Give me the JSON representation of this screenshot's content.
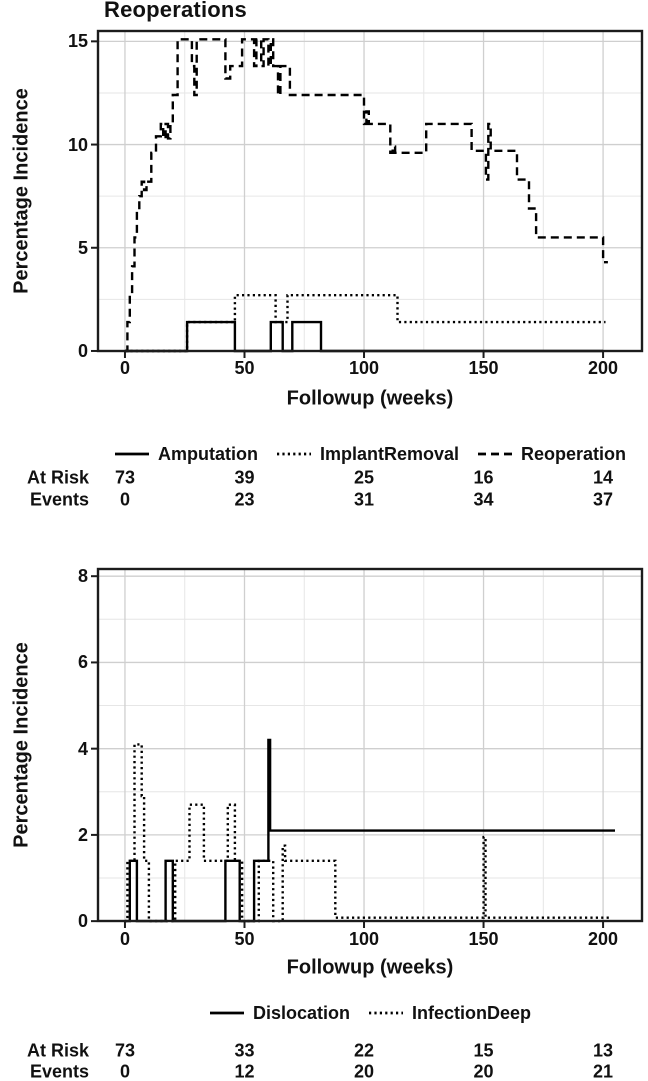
{
  "figure": {
    "background": "#ffffff",
    "line_color": "#000000",
    "border_color": "#1c1c1c",
    "grid_major_color": "#cfcfcf",
    "grid_minor_color": "#e6e6e6",
    "text_color": "#111111"
  },
  "chart_data": [
    {
      "type": "line",
      "variant": "step",
      "title": "Reoperations",
      "xlabel": "Followup (weeks)",
      "ylabel": "Percentage Incidence",
      "xlim": [
        -11.7,
        216.7
      ],
      "ylim": [
        -0.05,
        15.55
      ],
      "x_ticks": [
        0,
        50,
        100,
        150,
        200
      ],
      "x_minor": [
        25,
        75,
        125,
        175
      ],
      "y_ticks": [
        0,
        5,
        10,
        15
      ],
      "y_minor": [
        2.5,
        7.5,
        12.5
      ],
      "y_tick_suffix": "%",
      "grid": true,
      "legend_position": "bottom",
      "series": [
        {
          "name": "Amputation",
          "linestyle": "solid",
          "points": [
            [
              0,
              0
            ],
            [
              26,
              0
            ],
            [
              26,
              1.4
            ],
            [
              46,
              1.4
            ],
            [
              46,
              0
            ],
            [
              61,
              0
            ],
            [
              61,
              1.4
            ],
            [
              66,
              1.4
            ],
            [
              66,
              0
            ],
            [
              70,
              0
            ],
            [
              70,
              1.4
            ],
            [
              82,
              1.4
            ],
            [
              82,
              0
            ],
            [
              200,
              0
            ]
          ]
        },
        {
          "name": "ImplantRemoval",
          "linestyle": "dotted",
          "points": [
            [
              0,
              0
            ],
            [
              26,
              0
            ],
            [
              26,
              1.4
            ],
            [
              46,
              1.4
            ],
            [
              46,
              2.7
            ],
            [
              63,
              2.7
            ],
            [
              63,
              1.4
            ],
            [
              68,
              1.4
            ],
            [
              68,
              2.7
            ],
            [
              114,
              2.7
            ],
            [
              114,
              1.4
            ],
            [
              201,
              1.4
            ]
          ]
        },
        {
          "name": "Reoperation",
          "linestyle": "dashed",
          "points": [
            [
              0,
              0
            ],
            [
              1,
              0
            ],
            [
              1,
              1.4
            ],
            [
              2,
              1.4
            ],
            [
              2,
              2.7
            ],
            [
              3,
              2.7
            ],
            [
              3,
              4.1
            ],
            [
              4,
              4.1
            ],
            [
              4,
              5.5
            ],
            [
              5,
              5.5
            ],
            [
              5,
              6.8
            ],
            [
              6,
              6.8
            ],
            [
              6,
              7.5
            ],
            [
              7,
              7.5
            ],
            [
              7,
              8.2
            ],
            [
              8,
              8.2
            ],
            [
              8,
              7.8
            ],
            [
              9,
              7.8
            ],
            [
              9,
              8.2
            ],
            [
              11,
              8.2
            ],
            [
              11,
              9.6
            ],
            [
              13,
              9.6
            ],
            [
              13,
              10.4
            ],
            [
              15,
              10.4
            ],
            [
              15,
              11
            ],
            [
              16,
              11
            ],
            [
              16,
              10.3
            ],
            [
              17,
              10.3
            ],
            [
              17,
              11
            ],
            [
              18,
              11
            ],
            [
              18,
              10.3
            ],
            [
              19,
              10.3
            ],
            [
              19,
              11
            ],
            [
              20,
              11
            ],
            [
              20,
              12.4
            ],
            [
              22,
              12.4
            ],
            [
              22,
              15.1
            ],
            [
              28,
              15.1
            ],
            [
              28,
              13.8
            ],
            [
              29,
              13.8
            ],
            [
              29,
              12.4
            ],
            [
              30,
              12.4
            ],
            [
              30,
              15.1
            ],
            [
              42,
              15.1
            ],
            [
              42,
              13.2
            ],
            [
              44,
              13.2
            ],
            [
              44,
              13.8
            ],
            [
              49,
              13.8
            ],
            [
              49,
              15.1
            ],
            [
              54,
              15.1
            ],
            [
              54,
              13.8
            ],
            [
              55,
              13.8
            ],
            [
              55,
              15.1
            ],
            [
              57,
              15.1
            ],
            [
              57,
              13.8
            ],
            [
              58,
              13.8
            ],
            [
              58,
              15.1
            ],
            [
              60,
              15.1
            ],
            [
              60,
              13.8
            ],
            [
              61,
              13.8
            ],
            [
              61,
              15.1
            ],
            [
              62,
              15.1
            ],
            [
              62,
              13.8
            ],
            [
              64,
              13.8
            ],
            [
              64,
              12.4
            ],
            [
              65,
              12.4
            ],
            [
              65,
              13.8
            ],
            [
              69,
              13.8
            ],
            [
              69,
              12.4
            ],
            [
              100,
              12.4
            ],
            [
              100,
              11
            ],
            [
              101,
              11
            ],
            [
              101,
              11.6
            ],
            [
              102,
              11.6
            ],
            [
              102,
              11
            ],
            [
              111,
              11
            ],
            [
              111,
              9.6
            ],
            [
              112,
              9.6
            ],
            [
              112,
              9.9
            ],
            [
              113,
              9.9
            ],
            [
              113,
              9.6
            ],
            [
              126,
              9.6
            ],
            [
              126,
              11
            ],
            [
              145,
              11
            ],
            [
              145,
              9.7
            ],
            [
              151,
              9.7
            ],
            [
              151,
              8.3
            ],
            [
              152,
              8.3
            ],
            [
              152,
              11
            ],
            [
              153,
              11
            ],
            [
              153,
              9.7
            ],
            [
              164,
              9.7
            ],
            [
              164,
              8.3
            ],
            [
              169,
              8.3
            ],
            [
              169,
              6.9
            ],
            [
              172,
              6.9
            ],
            [
              172,
              5.5
            ],
            [
              200,
              5.5
            ],
            [
              200,
              4.3
            ],
            [
              202,
              4.3
            ]
          ]
        }
      ],
      "at_risk": {
        "row_labels": [
          "At Risk",
          "Events"
        ],
        "weeks": [
          0,
          50,
          100,
          150,
          200
        ],
        "rows": [
          [
            73,
            39,
            25,
            16,
            14
          ],
          [
            0,
            23,
            31,
            34,
            37
          ]
        ]
      }
    },
    {
      "type": "line",
      "variant": "step",
      "title": "",
      "xlabel": "Followup (weeks)",
      "ylabel": "Percentage Incidence",
      "xlim": [
        -11.7,
        216.7
      ],
      "ylim": [
        -0.02,
        8.19
      ],
      "x_ticks": [
        0,
        50,
        100,
        150,
        200
      ],
      "x_minor": [
        25,
        75,
        125,
        175
      ],
      "y_ticks": [
        0,
        2,
        4,
        6,
        8
      ],
      "y_minor": [
        1,
        3,
        5,
        7
      ],
      "y_tick_suffix": "%",
      "grid": true,
      "legend_position": "bottom",
      "series": [
        {
          "name": "Dislocation",
          "linestyle": "solid",
          "points": [
            [
              0,
              0
            ],
            [
              2,
              0
            ],
            [
              2,
              1.4
            ],
            [
              5,
              1.4
            ],
            [
              5,
              0
            ],
            [
              17,
              0
            ],
            [
              17,
              1.4
            ],
            [
              20,
              1.4
            ],
            [
              20,
              0
            ],
            [
              42,
              0
            ],
            [
              42,
              1.4
            ],
            [
              48,
              1.4
            ],
            [
              48,
              0
            ],
            [
              54,
              0
            ],
            [
              54,
              1.4
            ],
            [
              60,
              1.4
            ],
            [
              60,
              4.2
            ],
            [
              60.7,
              4.2
            ],
            [
              60.7,
              2.1
            ],
            [
              205,
              2.1
            ]
          ]
        },
        {
          "name": "InfectionDeep",
          "linestyle": "dotted",
          "points": [
            [
              0,
              0
            ],
            [
              1,
              0
            ],
            [
              1,
              1.4
            ],
            [
              4,
              1.4
            ],
            [
              4,
              4.1
            ],
            [
              7,
              4.1
            ],
            [
              7,
              2.9
            ],
            [
              8,
              2.9
            ],
            [
              8,
              1.4
            ],
            [
              10,
              1.4
            ],
            [
              10,
              0
            ],
            [
              21,
              0
            ],
            [
              21,
              1.4
            ],
            [
              27,
              1.4
            ],
            [
              27,
              2.7
            ],
            [
              33,
              2.7
            ],
            [
              33,
              1.4
            ],
            [
              43,
              1.4
            ],
            [
              43,
              2.7
            ],
            [
              46,
              2.7
            ],
            [
              46,
              1.4
            ],
            [
              49,
              1.4
            ],
            [
              49,
              0
            ],
            [
              56,
              0
            ],
            [
              56,
              1.4
            ],
            [
              62,
              1.4
            ],
            [
              62,
              0
            ],
            [
              66,
              0
            ],
            [
              66,
              1.75
            ],
            [
              67,
              1.75
            ],
            [
              67,
              1.4
            ],
            [
              88,
              1.4
            ],
            [
              88,
              0.08
            ],
            [
              150,
              0.08
            ],
            [
              150,
              1.95
            ],
            [
              150.8,
              1.95
            ],
            [
              150.8,
              0.08
            ],
            [
              203,
              0.08
            ]
          ]
        }
      ],
      "at_risk": {
        "row_labels": [
          "At Risk",
          "Events"
        ],
        "weeks": [
          0,
          50,
          100,
          150,
          200
        ],
        "rows": [
          [
            73,
            33,
            22,
            15,
            13
          ],
          [
            0,
            12,
            20,
            20,
            21
          ]
        ]
      }
    }
  ]
}
